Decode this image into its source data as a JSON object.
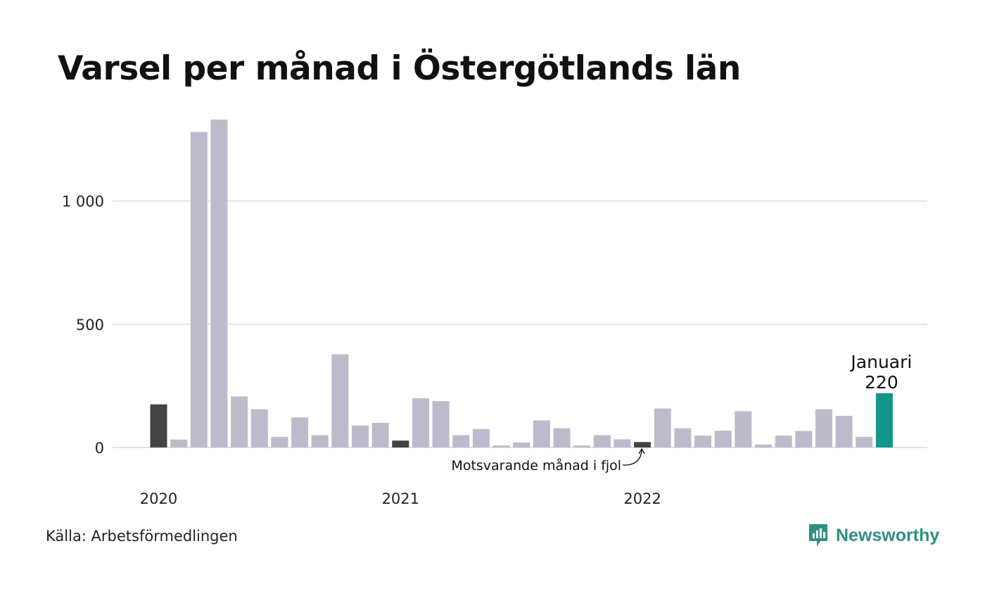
{
  "title": "Varsel per månad i Östergötlands län",
  "source": "Källa: Arbetsförmedlingen",
  "brand": "Newsworthy",
  "colors": {
    "bar": "#bdbbcb",
    "previous_year": "#444444",
    "current": "#13968a",
    "grid": "#e2e1e8",
    "brand": "#2f8f83"
  },
  "chart_data": {
    "type": "bar",
    "title": "Varsel per månad i Östergötlands län",
    "xlabel": "",
    "ylabel": "",
    "ylim": [
      0,
      1330
    ],
    "y_ticks": [
      0,
      500,
      1000
    ],
    "y_tick_labels": [
      "0",
      "500",
      "1 000"
    ],
    "x_tick_labels": [
      {
        "label": "2020",
        "index": 0
      },
      {
        "label": "2021",
        "index": 12
      },
      {
        "label": "2022",
        "index": 24
      }
    ],
    "grid": true,
    "legend": "none",
    "values": [
      175,
      32,
      1280,
      1330,
      207,
      155,
      43,
      122,
      50,
      378,
      89,
      100,
      28,
      200,
      188,
      50,
      75,
      8,
      20,
      110,
      78,
      8,
      50,
      33,
      22,
      158,
      78,
      48,
      68,
      147,
      12,
      48,
      67,
      155,
      128,
      43,
      220
    ],
    "highlight_previous_year_indices": [
      0,
      12,
      24
    ],
    "highlight_current_index": 36,
    "annotations": [
      {
        "text": "Motsvarande månad i fjol",
        "target_index": 24
      },
      {
        "text_lines": [
          "Januari",
          "220"
        ],
        "target_index": 36
      }
    ]
  }
}
